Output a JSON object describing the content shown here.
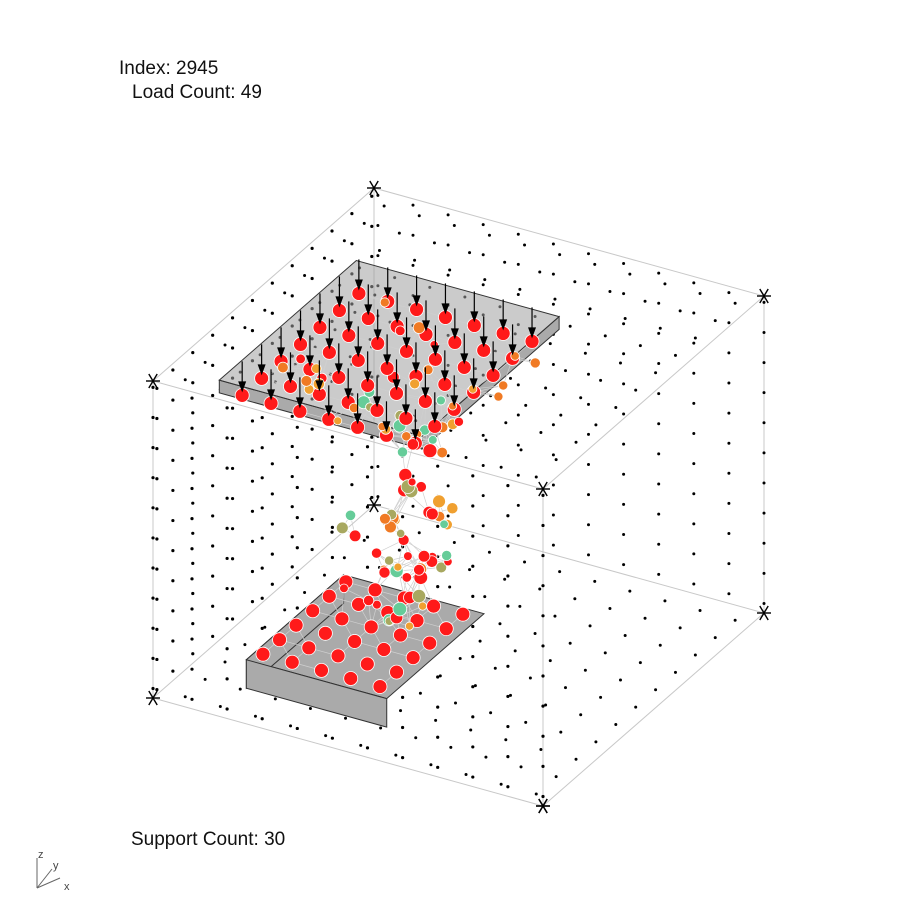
{
  "info": {
    "index_label": "Index: 2945",
    "load_count_label": "Load Count: 49",
    "support_count_label": "Support Count: 30"
  },
  "axes": {
    "z": "z",
    "y": "y",
    "x": "x"
  },
  "colors": {
    "plate_fill": "#aaaaaa",
    "plate_edge": "#333333",
    "node_red": "#ff1a1a",
    "node_orange": "#f07a24",
    "node_amber": "#f0a030",
    "node_olive": "#a8a860",
    "node_green": "#66cc99",
    "member": "#cfcfcf",
    "box": "#c8c8c8",
    "grid_dot": "#000000"
  },
  "icons": {
    "corner_marker": "asterisk-icon",
    "load_arrow": "down-arrow-icon"
  }
}
